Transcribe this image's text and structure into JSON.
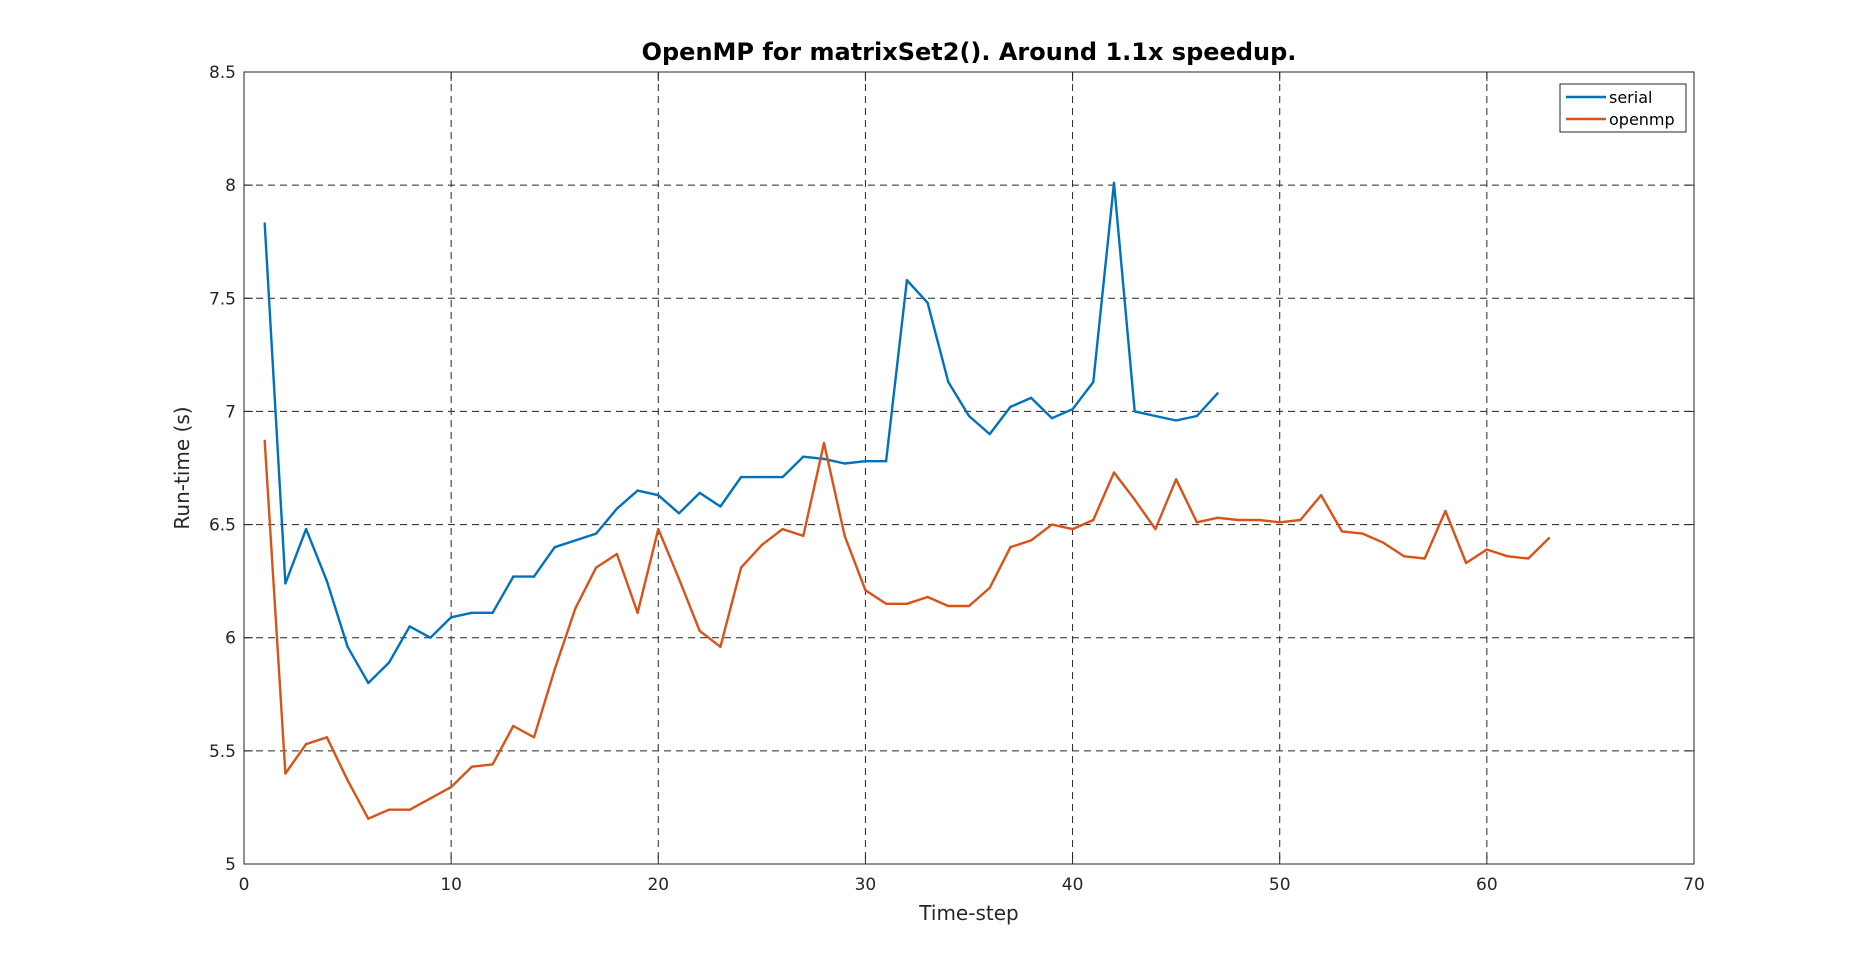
{
  "chart_data": {
    "type": "line",
    "title": "OpenMP for matrixSet2(). Around 1.1x speedup.",
    "xlabel": "Time-step",
    "ylabel": "Run-time (s)",
    "xlim": [
      0,
      70
    ],
    "ylim": [
      5,
      8.5
    ],
    "xticks": [
      0,
      10,
      20,
      30,
      40,
      50,
      60,
      70
    ],
    "yticks": [
      5,
      5.5,
      6,
      6.5,
      7,
      7.5,
      8,
      8.5
    ],
    "xtick_labels": [
      "0",
      "10",
      "20",
      "30",
      "40",
      "50",
      "60",
      "70"
    ],
    "ytick_labels": [
      "5",
      "5.5",
      "6",
      "6.5",
      "7",
      "7.5",
      "8",
      "8.5"
    ],
    "grid": true,
    "legend_position": "top-right",
    "series": [
      {
        "name": "serial",
        "color": "#0072bd",
        "x": [
          1,
          2,
          3,
          4,
          5,
          6,
          7,
          8,
          9,
          10,
          11,
          12,
          13,
          14,
          15,
          16,
          17,
          18,
          19,
          20,
          21,
          22,
          23,
          24,
          25,
          26,
          27,
          28,
          29,
          30,
          31,
          32,
          33,
          34,
          35,
          36,
          37,
          38,
          39,
          40,
          41,
          42,
          43,
          44,
          45,
          46,
          47
        ],
        "y": [
          7.83,
          6.24,
          6.48,
          6.25,
          5.96,
          5.8,
          5.89,
          6.05,
          6.0,
          6.09,
          6.11,
          6.11,
          6.27,
          6.27,
          6.4,
          6.43,
          6.46,
          6.57,
          6.65,
          6.63,
          6.55,
          6.64,
          6.58,
          6.71,
          6.71,
          6.71,
          6.8,
          6.79,
          6.77,
          6.78,
          6.78,
          7.58,
          7.48,
          7.13,
          6.98,
          6.9,
          7.02,
          7.06,
          6.97,
          7.01,
          7.13,
          8.01,
          7.0,
          6.98,
          6.96,
          6.98,
          7.08
        ]
      },
      {
        "name": "openmp",
        "color": "#d95319",
        "x": [
          1,
          2,
          3,
          4,
          5,
          6,
          7,
          8,
          9,
          10,
          11,
          12,
          13,
          14,
          15,
          16,
          17,
          18,
          19,
          20,
          21,
          22,
          23,
          24,
          25,
          26,
          27,
          28,
          29,
          30,
          31,
          32,
          33,
          34,
          35,
          36,
          37,
          38,
          39,
          40,
          41,
          42,
          43,
          44,
          45,
          46,
          47,
          48,
          49,
          50,
          51,
          52,
          53,
          54,
          55,
          56,
          57,
          58,
          59,
          60,
          61,
          62,
          63
        ],
        "y": [
          6.87,
          5.4,
          5.53,
          5.56,
          5.37,
          5.2,
          5.24,
          5.24,
          5.29,
          5.34,
          5.43,
          5.44,
          5.61,
          5.56,
          5.86,
          6.13,
          6.31,
          6.37,
          6.11,
          6.48,
          6.26,
          6.03,
          5.96,
          6.31,
          6.41,
          6.48,
          6.45,
          6.86,
          6.45,
          6.21,
          6.15,
          6.15,
          6.18,
          6.14,
          6.14,
          6.22,
          6.4,
          6.43,
          6.5,
          6.48,
          6.52,
          6.73,
          6.61,
          6.48,
          6.7,
          6.51,
          6.53,
          6.52,
          6.52,
          6.51,
          6.52,
          6.63,
          6.47,
          6.46,
          6.42,
          6.36,
          6.35,
          6.56,
          6.33,
          6.39,
          6.36,
          6.35,
          6.44
        ]
      }
    ]
  }
}
